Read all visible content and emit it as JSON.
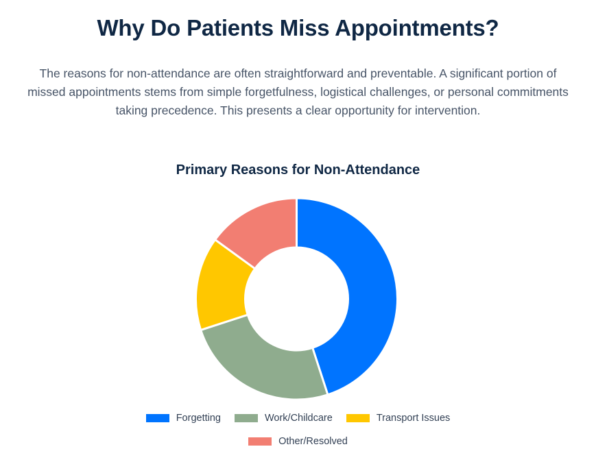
{
  "heading": "Why Do Patients Miss Appointments?",
  "intro": "The reasons for non-attendance are often straightforward and preventable. A significant portion of missed appointments stems from simple forgetfulness, logistical challenges, or personal commitments taking precedence. This presents a clear opportunity for intervention.",
  "chart_data": {
    "type": "pie",
    "variant": "doughnut",
    "title": "Primary Reasons for Non-Attendance",
    "categories": [
      "Forgetting",
      "Work/Childcare",
      "Transport Issues",
      "Other/Resolved"
    ],
    "values": [
      45,
      25,
      15,
      15
    ],
    "colors": [
      "#0074ff",
      "#8fac8e",
      "#ffc700",
      "#f27e72"
    ],
    "legend_position": "bottom"
  }
}
